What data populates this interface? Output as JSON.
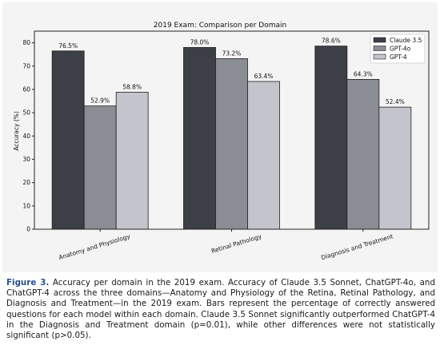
{
  "chart_data": {
    "type": "bar",
    "title": "2019 Exam: Comparison per Domain",
    "xlabel": "",
    "ylabel": "Accuracy (%)",
    "ylim": [
      0,
      85
    ],
    "yticks": [
      0,
      10,
      20,
      30,
      40,
      50,
      60,
      70,
      80
    ],
    "categories": [
      "Anatomy and Physiology",
      "Retinal Pathology",
      "Diagnosis and Treatment"
    ],
    "series": [
      {
        "name": "Claude 3.5",
        "values": [
          76.5,
          78.0,
          78.6
        ],
        "labels": [
          "76.5%",
          "78.0%",
          "78.6%"
        ],
        "color": "#3c3f46"
      },
      {
        "name": "GPT-4o",
        "values": [
          52.9,
          73.2,
          64.3
        ],
        "labels": [
          "52.9%",
          "73.2%",
          "64.3%"
        ],
        "color": "#8a8d93"
      },
      {
        "name": "GPT-4",
        "values": [
          58.8,
          63.4,
          52.4
        ],
        "labels": [
          "58.8%",
          "63.4%",
          "52.4%"
        ],
        "color": "#c4c5cc"
      }
    ],
    "grid": false,
    "legend": "top-right"
  },
  "caption": {
    "label": "Figure 3.",
    "text": "Accuracy per domain in the 2019 exam. Accuracy of Claude 3.5 Sonnet, ChatGPT-4o, and ChatGPT-4 across the three domains—Anatomy and Physiology of the Retina, Retinal Pathology, and Diagnosis and Treatment—in the 2019 exam. Bars represent the percentage of correctly answered questions for each model within each domain. Claude 3.5 Sonnet significantly outperformed ChatGPT-4 in the Diagnosis and Treatment domain (p=0.01), while other differences were not statistically significant (p>0.05)."
  }
}
